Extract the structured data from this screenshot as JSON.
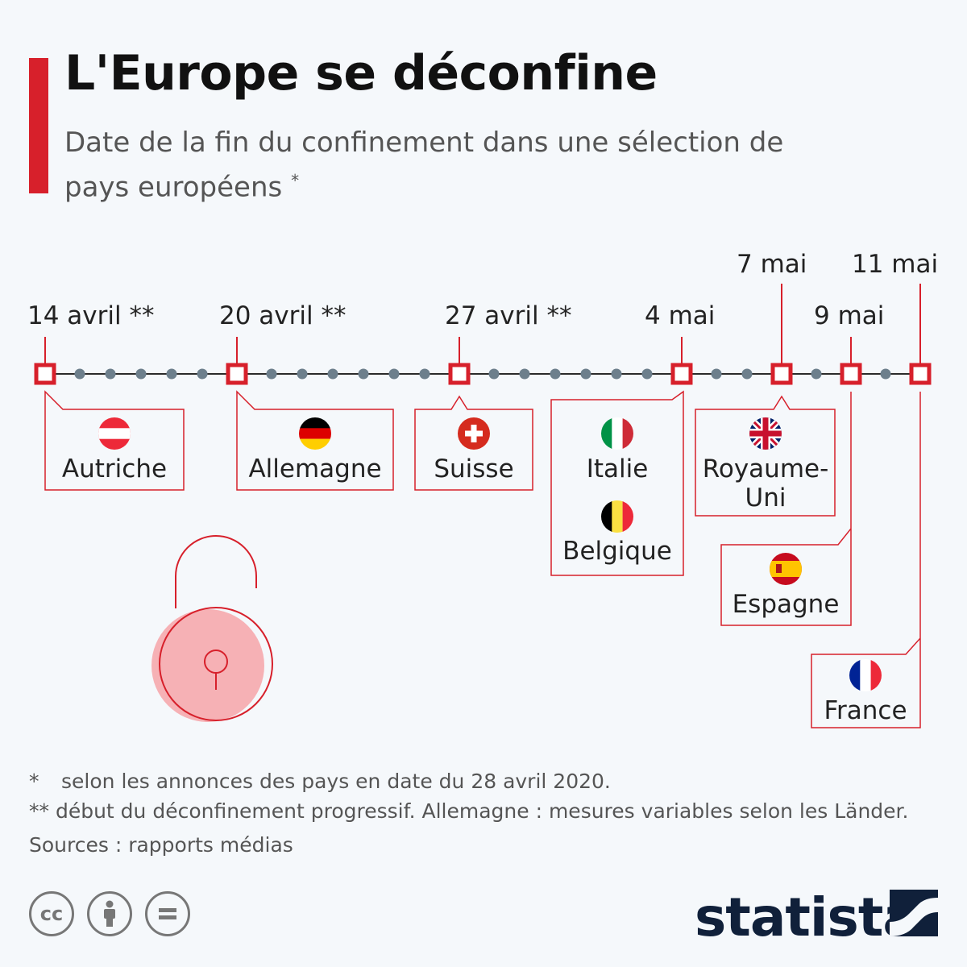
{
  "header": {
    "title": "L'Europe se déconfine",
    "subtitle": "Date de la fin du confinement dans une sélection de pays européens",
    "subtitle_mark": "*"
  },
  "timeline": {
    "events": [
      {
        "date": "14 avril **",
        "countries": [
          "Autriche"
        ]
      },
      {
        "date": "20 avril **",
        "countries": [
          "Allemagne"
        ]
      },
      {
        "date": "27 avril **",
        "countries": [
          "Suisse"
        ]
      },
      {
        "date": "4 mai",
        "countries": [
          "Italie",
          "Belgique"
        ]
      },
      {
        "date": "7 mai",
        "countries": [
          "Royaume-Uni"
        ]
      },
      {
        "date": "9 mai",
        "countries": [
          "Espagne"
        ]
      },
      {
        "date": "11 mai",
        "countries": [
          "France"
        ]
      }
    ],
    "colors": {
      "accent": "#d7202b",
      "axis": "#2b2b2b",
      "dot": "#6d7f8c",
      "lock_fill": "#f6a9ad"
    },
    "icon": "unlocked-padlock-icon"
  },
  "countries": {
    "autriche": "Autriche",
    "allemagne": "Allemagne",
    "suisse": "Suisse",
    "italie": "Italie",
    "belgique": "Belgique",
    "royaume_uni_1": "Royaume-",
    "royaume_uni_2": "Uni",
    "espagne": "Espagne",
    "france": "France"
  },
  "dates": {
    "d1": "14 avril **",
    "d2": "20 avril **",
    "d3": "27 avril **",
    "d4": "4 mai",
    "d5": "7 mai",
    "d6": "9 mai",
    "d7": "11 mai"
  },
  "footnotes": {
    "note1_mark": "*",
    "note1": "selon les annonces des pays en date du 28 avril 2020.",
    "note2": "** début du déconfinement progressif. Allemagne : mesures variables selon les Länder.",
    "sources": "Sources : rapports médias"
  },
  "license_icons": [
    "cc-icon",
    "attribution-icon",
    "no-derivatives-icon"
  ],
  "brand": {
    "name": "statista"
  }
}
